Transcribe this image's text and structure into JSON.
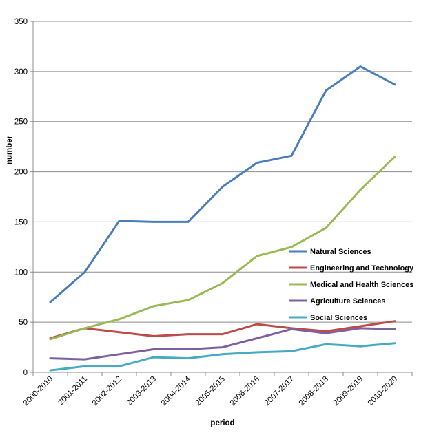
{
  "chart_data": {
    "type": "line",
    "title": "",
    "xlabel": "period",
    "ylabel": "number",
    "ylim": [
      0,
      350
    ],
    "yticks": [
      0,
      50,
      100,
      150,
      200,
      250,
      300,
      350
    ],
    "grid": "horizontal",
    "legend_position": "right, inside plot",
    "categories": [
      "2000-2010",
      "2001-2011",
      "2002-2012",
      "2003-2013",
      "2004-2014",
      "2005-2015",
      "2006-2016",
      "2007-2017",
      "2008-2018",
      "2009-2019",
      "2010-2020"
    ],
    "series": [
      {
        "name": "Natural Sciences",
        "color": "#4a7ebb",
        "values": [
          70,
          100,
          151,
          150,
          150,
          185,
          209,
          216,
          281,
          305,
          287
        ]
      },
      {
        "name": "Engineering and Technology",
        "color": "#be4b48",
        "values": [
          34,
          44,
          40,
          36,
          38,
          38,
          48,
          44,
          41,
          46,
          51
        ]
      },
      {
        "name": "Medical and Health Sciences",
        "color": "#98b954",
        "values": [
          33,
          44,
          53,
          66,
          72,
          89,
          116,
          125,
          144,
          182,
          215
        ]
      },
      {
        "name": "Agriculture Sciences",
        "color": "#7d60a0",
        "values": [
          14,
          13,
          18,
          23,
          23,
          25,
          34,
          43,
          39,
          44,
          43
        ]
      },
      {
        "name": "Social Sciences",
        "color": "#46aac5",
        "values": [
          2,
          6,
          6,
          15,
          14,
          18,
          20,
          21,
          28,
          26,
          29
        ]
      }
    ]
  }
}
